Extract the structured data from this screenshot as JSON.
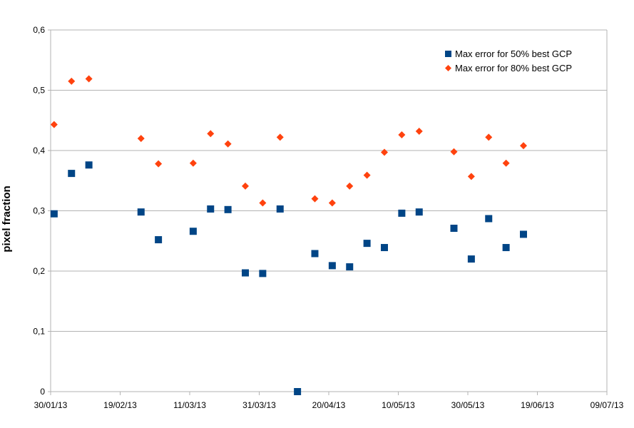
{
  "chart_data": {
    "type": "scatter",
    "title": "",
    "xlabel": "",
    "ylabel": "pixel fraction",
    "x_axis": {
      "type": "date",
      "min": "2013-01-30",
      "max": "2013-07-09",
      "ticks": [
        {
          "date": "2013-01-30",
          "label": "30/01/13"
        },
        {
          "date": "2013-02-19",
          "label": "19/02/13"
        },
        {
          "date": "2013-03-11",
          "label": "11/03/13"
        },
        {
          "date": "2013-03-31",
          "label": "31/03/13"
        },
        {
          "date": "2013-04-20",
          "label": "20/04/13"
        },
        {
          "date": "2013-05-10",
          "label": "10/05/13"
        },
        {
          "date": "2013-05-30",
          "label": "30/05/13"
        },
        {
          "date": "2013-06-19",
          "label": "19/06/13"
        },
        {
          "date": "2013-07-09",
          "label": "09/07/13"
        }
      ]
    },
    "y_axis": {
      "min": 0,
      "max": 0.6,
      "ticks": [
        {
          "value": 0,
          "label": "0"
        },
        {
          "value": 0.1,
          "label": "0,1"
        },
        {
          "value": 0.2,
          "label": "0,2"
        },
        {
          "value": 0.3,
          "label": "0,3"
        },
        {
          "value": 0.4,
          "label": "0,4"
        },
        {
          "value": 0.5,
          "label": "0,5"
        },
        {
          "value": 0.6,
          "label": "0,6"
        }
      ]
    },
    "grid": "horizontal",
    "legend_position": "top-right",
    "series": [
      {
        "name": "Max error for 50% best GCP",
        "marker": "square",
        "color": "#004586",
        "points": [
          {
            "x": "2013-01-31",
            "y": 0.295
          },
          {
            "x": "2013-02-05",
            "y": 0.362
          },
          {
            "x": "2013-02-10",
            "y": 0.376
          },
          {
            "x": "2013-02-25",
            "y": 0.298
          },
          {
            "x": "2013-03-02",
            "y": 0.252
          },
          {
            "x": "2013-03-12",
            "y": 0.266
          },
          {
            "x": "2013-03-17",
            "y": 0.303
          },
          {
            "x": "2013-03-22",
            "y": 0.302
          },
          {
            "x": "2013-03-27",
            "y": 0.197
          },
          {
            "x": "2013-04-01",
            "y": 0.196
          },
          {
            "x": "2013-04-06",
            "y": 0.303
          },
          {
            "x": "2013-04-11",
            "y": 0.0
          },
          {
            "x": "2013-04-16",
            "y": 0.229
          },
          {
            "x": "2013-04-21",
            "y": 0.209
          },
          {
            "x": "2013-04-26",
            "y": 0.207
          },
          {
            "x": "2013-05-01",
            "y": 0.246
          },
          {
            "x": "2013-05-06",
            "y": 0.239
          },
          {
            "x": "2013-05-11",
            "y": 0.296
          },
          {
            "x": "2013-05-16",
            "y": 0.298
          },
          {
            "x": "2013-05-26",
            "y": 0.271
          },
          {
            "x": "2013-05-31",
            "y": 0.22
          },
          {
            "x": "2013-06-05",
            "y": 0.287
          },
          {
            "x": "2013-06-10",
            "y": 0.239
          },
          {
            "x": "2013-06-15",
            "y": 0.261
          }
        ]
      },
      {
        "name": "Max error for 80% best GCP",
        "marker": "diamond",
        "color": "#ff420e",
        "points": [
          {
            "x": "2013-01-31",
            "y": 0.443
          },
          {
            "x": "2013-02-05",
            "y": 0.515
          },
          {
            "x": "2013-02-10",
            "y": 0.519
          },
          {
            "x": "2013-02-25",
            "y": 0.42
          },
          {
            "x": "2013-03-02",
            "y": 0.378
          },
          {
            "x": "2013-03-12",
            "y": 0.379
          },
          {
            "x": "2013-03-17",
            "y": 0.428
          },
          {
            "x": "2013-03-22",
            "y": 0.411
          },
          {
            "x": "2013-03-27",
            "y": 0.341
          },
          {
            "x": "2013-04-01",
            "y": 0.313
          },
          {
            "x": "2013-04-06",
            "y": 0.422
          },
          {
            "x": "2013-04-16",
            "y": 0.32
          },
          {
            "x": "2013-04-21",
            "y": 0.313
          },
          {
            "x": "2013-04-26",
            "y": 0.341
          },
          {
            "x": "2013-05-01",
            "y": 0.359
          },
          {
            "x": "2013-05-06",
            "y": 0.397
          },
          {
            "x": "2013-05-11",
            "y": 0.426
          },
          {
            "x": "2013-05-16",
            "y": 0.432
          },
          {
            "x": "2013-05-26",
            "y": 0.398
          },
          {
            "x": "2013-05-31",
            "y": 0.357
          },
          {
            "x": "2013-06-05",
            "y": 0.422
          },
          {
            "x": "2013-06-10",
            "y": 0.379
          },
          {
            "x": "2013-06-15",
            "y": 0.408
          }
        ]
      }
    ]
  }
}
